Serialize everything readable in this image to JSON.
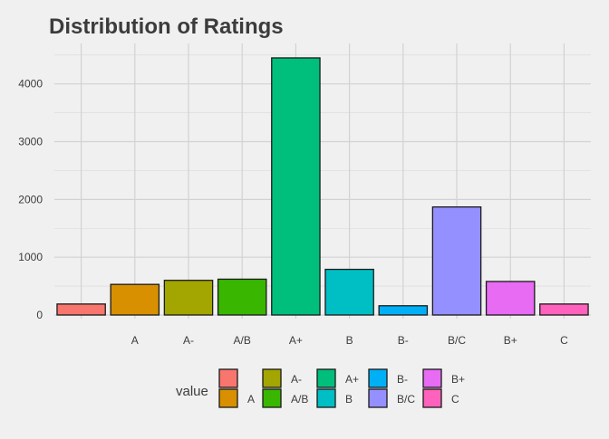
{
  "chart_data": {
    "type": "bar",
    "title": "Distribution of Ratings",
    "xlabel": "",
    "ylabel": "",
    "categories": [
      "",
      "A",
      "A-",
      "A/B",
      "A+",
      "B",
      "B-",
      "B/C",
      "B+",
      "C"
    ],
    "values": [
      190,
      530,
      600,
      620,
      4450,
      790,
      160,
      1870,
      580,
      190
    ],
    "colors": [
      "#F8766D",
      "#D89000",
      "#A3A500",
      "#39B600",
      "#00BF7D",
      "#00BFC4",
      "#00B0F6",
      "#9590FF",
      "#E76BF3",
      "#FF62BC"
    ],
    "ylim": [
      0,
      4700
    ],
    "yticks": [
      0,
      1000,
      2000,
      3000,
      4000
    ],
    "grid": true,
    "legend": {
      "title": "value",
      "position": "bottom",
      "columns": [
        [
          "",
          "A"
        ],
        [
          "A-",
          "A/B"
        ],
        [
          "A+",
          "B"
        ],
        [
          "B-",
          "B/C"
        ],
        [
          "B+",
          "C"
        ]
      ]
    }
  }
}
